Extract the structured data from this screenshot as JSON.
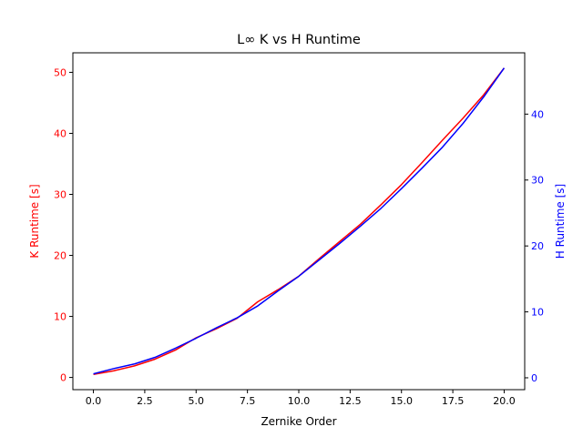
{
  "chart_data": {
    "type": "line",
    "title": "L∞ K vs H Runtime",
    "xlabel": "Zernike Order",
    "ylabel_left": "K Runtime [s]",
    "ylabel_right": "H Runtime [s]",
    "xlim": [
      -1.0,
      21.0
    ],
    "ylim_left": [
      -2.0,
      53.2
    ],
    "ylim_right": [
      -1.8,
      49.3
    ],
    "xticks": [
      0.0,
      2.5,
      5.0,
      7.5,
      10.0,
      12.5,
      15.0,
      17.5,
      20.0
    ],
    "xtick_labels": [
      "0.0",
      "2.5",
      "5.0",
      "7.5",
      "10.0",
      "12.5",
      "15.0",
      "17.5",
      "20.0"
    ],
    "yticks_left": [
      0,
      10,
      20,
      30,
      40,
      50
    ],
    "ytick_labels_left": [
      "0",
      "10",
      "20",
      "30",
      "40",
      "50"
    ],
    "yticks_right": [
      0,
      10,
      20,
      30,
      40
    ],
    "ytick_labels_right": [
      "0",
      "10",
      "20",
      "30",
      "40"
    ],
    "grid": false,
    "x": [
      0,
      1,
      2,
      3,
      4,
      5,
      6,
      7,
      8,
      9,
      10,
      11,
      12,
      13,
      14,
      15,
      16,
      17,
      18,
      19,
      20
    ],
    "series": [
      {
        "axis": "left",
        "color": "#ff0000",
        "values": [
          0.5,
          1.1,
          1.9,
          3.0,
          4.5,
          6.5,
          8.0,
          9.7,
          12.4,
          14.4,
          16.6,
          19.5,
          22.3,
          25.1,
          28.3,
          31.6,
          35.2,
          38.9,
          42.5,
          46.3,
          50.7
        ]
      },
      {
        "axis": "right",
        "color": "#0000ff",
        "values": [
          0.6,
          1.4,
          2.1,
          3.1,
          4.5,
          6.0,
          7.6,
          9.1,
          10.9,
          13.2,
          15.4,
          17.9,
          20.4,
          23.0,
          25.7,
          28.7,
          31.8,
          35.0,
          38.6,
          42.6,
          47.0
        ]
      }
    ]
  }
}
